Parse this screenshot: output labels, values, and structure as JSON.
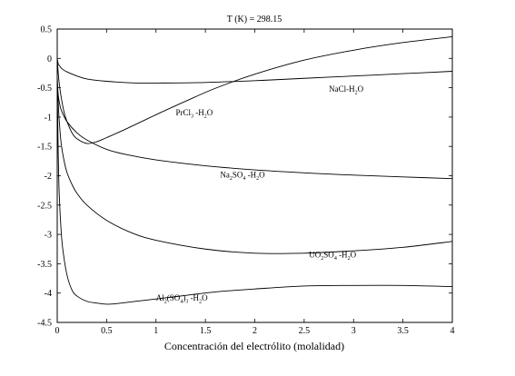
{
  "chart_data": {
    "type": "line",
    "title": "T (K) =  298.15",
    "xlabel": "Concentración del electrólito (molalidad)",
    "ylabel": "",
    "xlim": [
      0,
      4
    ],
    "ylim": [
      -4.5,
      0.5
    ],
    "x_ticks": [
      "0",
      "0.5",
      "1",
      "1.5",
      "2",
      "2.5",
      "3",
      "3.5",
      "4"
    ],
    "y_ticks": [
      "0.5",
      "0",
      "-0.5",
      "-1",
      "-1.5",
      "-2",
      "-2.5",
      "-3",
      "-3.5",
      "-4",
      "-4.5"
    ],
    "grid": false,
    "legend": "none",
    "series": [
      {
        "name": "NaCl-H2O",
        "label_parts": [
          {
            "t": "NaCl-H"
          },
          {
            "t": "2",
            "sub": true
          },
          {
            "t": "O"
          }
        ],
        "label_at": {
          "x": 2.75,
          "y": -0.57
        },
        "x": [
          0,
          0.01,
          0.03,
          0.05,
          0.1,
          0.2,
          0.3,
          0.5,
          0.8,
          1.0,
          1.5,
          2.0,
          2.5,
          3.0,
          3.5,
          4.0
        ],
        "y": [
          0,
          -0.09,
          -0.14,
          -0.18,
          -0.23,
          -0.3,
          -0.35,
          -0.39,
          -0.42,
          -0.42,
          -0.41,
          -0.38,
          -0.34,
          -0.3,
          -0.26,
          -0.22
        ]
      },
      {
        "name": "PrCl3-H2O",
        "label_parts": [
          {
            "t": "PrCl"
          },
          {
            "t": "3",
            "sub": true
          },
          {
            "t": " -H"
          },
          {
            "t": "2",
            "sub": true
          },
          {
            "t": "O"
          }
        ],
        "label_at": {
          "x": 1.2,
          "y": -0.97
        },
        "x": [
          0,
          0.01,
          0.02,
          0.04,
          0.07,
          0.1,
          0.15,
          0.2,
          0.3,
          0.4,
          0.5,
          0.7,
          1.0,
          1.3,
          1.6,
          2.0,
          2.5,
          3.0,
          3.5,
          4.0
        ],
        "y": [
          0,
          -0.25,
          -0.42,
          -0.66,
          -0.92,
          -1.08,
          -1.27,
          -1.37,
          -1.45,
          -1.42,
          -1.35,
          -1.2,
          -0.96,
          -0.73,
          -0.51,
          -0.27,
          -0.03,
          0.14,
          0.27,
          0.37
        ]
      },
      {
        "name": "Na2SO4-H2O",
        "label_parts": [
          {
            "t": "Na"
          },
          {
            "t": "2",
            "sub": true
          },
          {
            "t": "SO"
          },
          {
            "t": "4",
            "sub": true
          },
          {
            "t": "  -H"
          },
          {
            "t": "2",
            "sub": true
          },
          {
            "t": "O"
          }
        ],
        "label_at": {
          "x": 1.65,
          "y": -2.03
        },
        "x": [
          0,
          0.01,
          0.03,
          0.05,
          0.1,
          0.2,
          0.3,
          0.5,
          0.7,
          1.0,
          1.5,
          2.0,
          2.5,
          3.0,
          3.5,
          4.0
        ],
        "y": [
          -0.3,
          -0.62,
          -0.82,
          -0.92,
          -1.08,
          -1.27,
          -1.39,
          -1.55,
          -1.64,
          -1.73,
          -1.83,
          -1.9,
          -1.95,
          -1.99,
          -2.02,
          -2.05
        ]
      },
      {
        "name": "UO2SO4-H2O",
        "label_parts": [
          {
            "t": "UO"
          },
          {
            "t": "2",
            "sub": true
          },
          {
            "t": "SO"
          },
          {
            "t": "4",
            "sub": true
          },
          {
            "t": "  -H"
          },
          {
            "t": "2",
            "sub": true
          },
          {
            "t": "O"
          }
        ],
        "label_at": {
          "x": 2.55,
          "y": -3.39
        },
        "x": [
          0,
          0.01,
          0.02,
          0.04,
          0.07,
          0.1,
          0.15,
          0.2,
          0.3,
          0.5,
          0.75,
          1.0,
          1.5,
          2.0,
          2.5,
          3.0,
          3.5,
          4.0
        ],
        "y": [
          -0.4,
          -0.75,
          -1.05,
          -1.45,
          -1.75,
          -1.95,
          -2.15,
          -2.3,
          -2.5,
          -2.76,
          -2.97,
          -3.1,
          -3.25,
          -3.32,
          -3.32,
          -3.28,
          -3.22,
          -3.12
        ]
      },
      {
        "name": "Al2(SO4)3-H2O",
        "label_parts": [
          {
            "t": "Al"
          },
          {
            "t": "2",
            "sub": true
          },
          {
            "t": "(SO"
          },
          {
            "t": "4",
            "sub": true
          },
          {
            "t": ")"
          },
          {
            "t": "3",
            "sub": true
          },
          {
            "t": "  -H"
          },
          {
            "t": "2",
            "sub": true
          },
          {
            "t": "O"
          }
        ],
        "label_at": {
          "x": 1.0,
          "y": -4.13
        },
        "x": [
          0,
          0.005,
          0.01,
          0.02,
          0.04,
          0.06,
          0.1,
          0.15,
          0.2,
          0.3,
          0.4,
          0.5,
          0.6,
          0.8,
          1.0,
          1.3,
          1.6,
          2.0,
          2.5,
          3.0,
          3.5,
          4.0
        ],
        "y": [
          -0.5,
          -1.0,
          -1.6,
          -2.3,
          -2.95,
          -3.3,
          -3.7,
          -3.95,
          -4.05,
          -4.14,
          -4.17,
          -4.19,
          -4.18,
          -4.14,
          -4.1,
          -4.04,
          -3.98,
          -3.93,
          -3.88,
          -3.87,
          -3.87,
          -3.89
        ]
      }
    ]
  }
}
